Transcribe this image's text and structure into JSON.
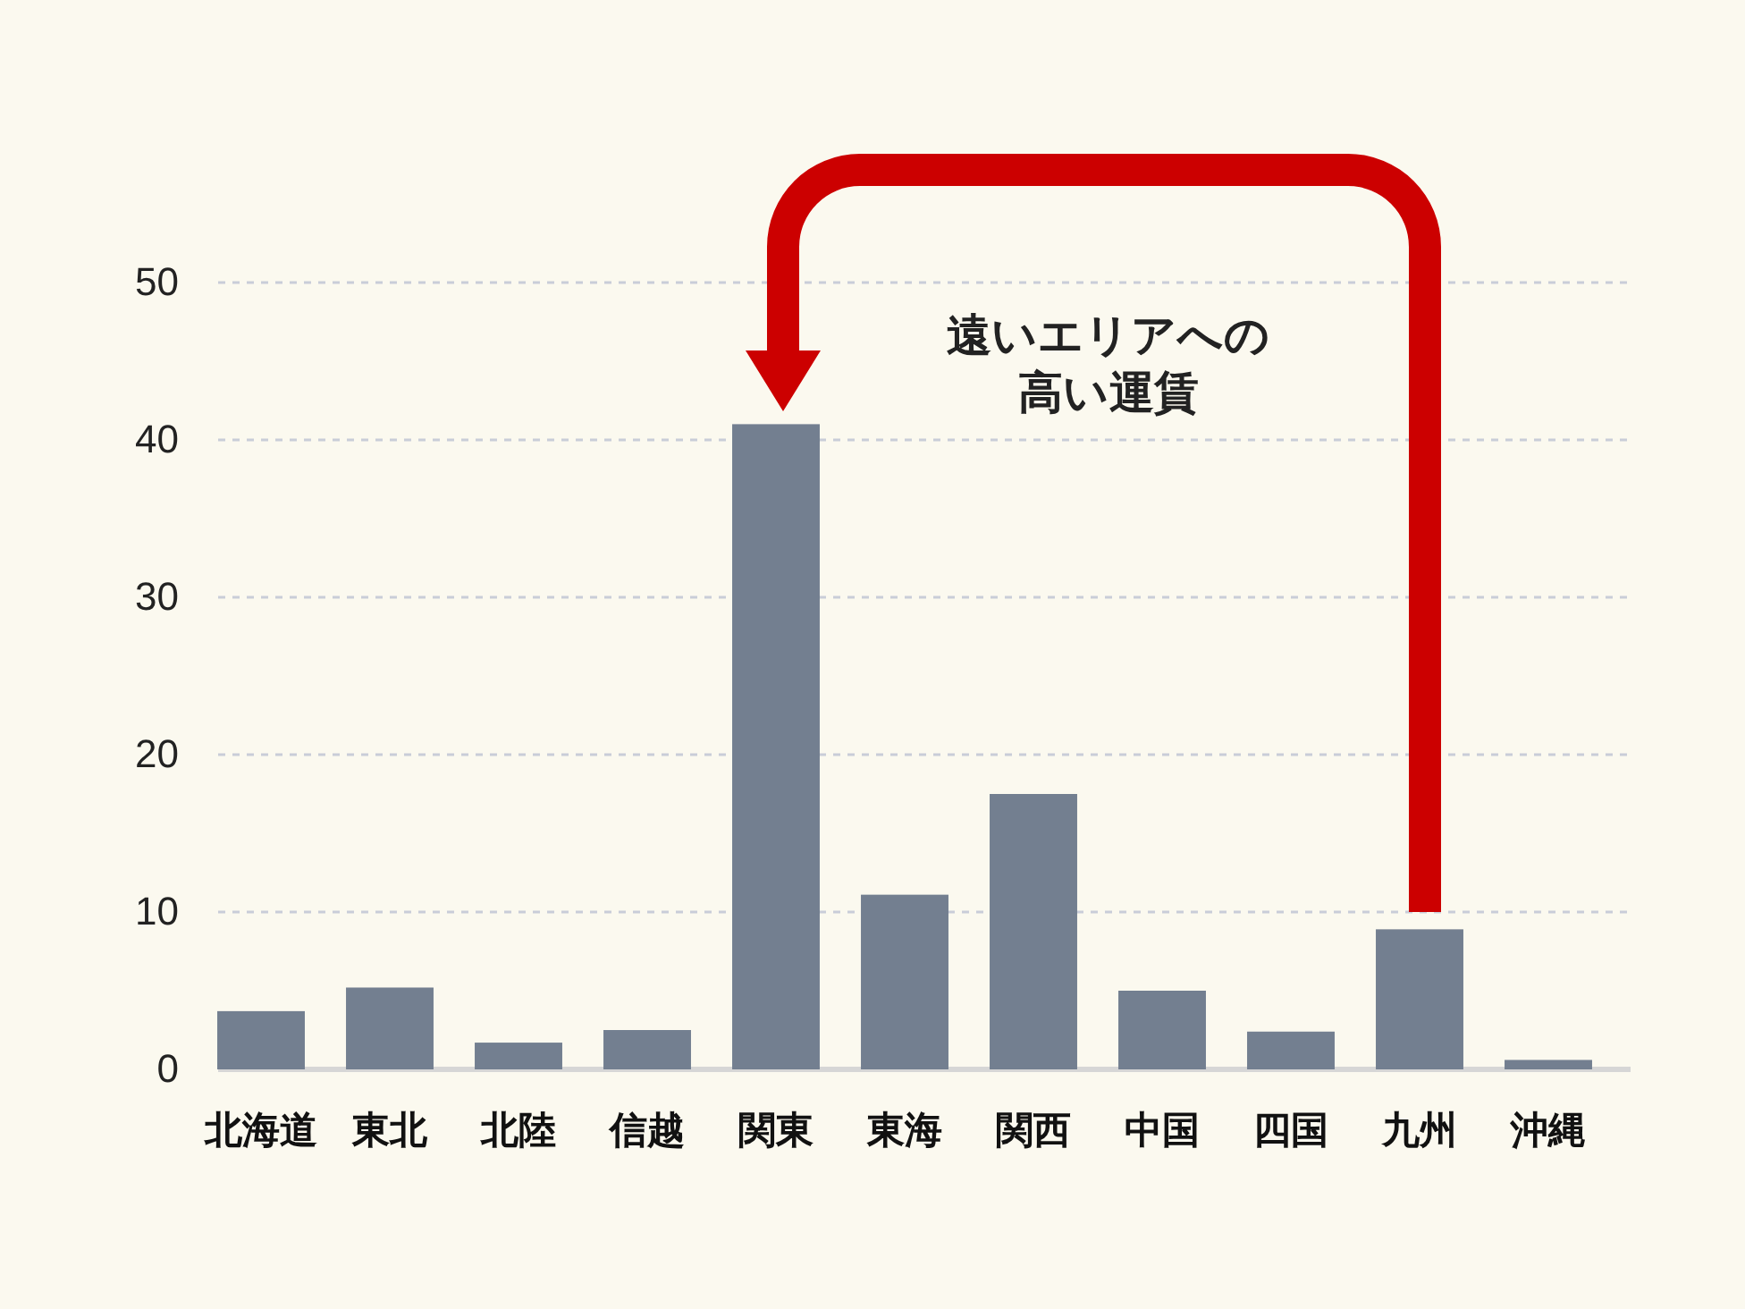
{
  "chart_data": {
    "type": "bar",
    "categories": [
      "北海道",
      "東北",
      "北陸",
      "信越",
      "関東",
      "東海",
      "関西",
      "中国",
      "四国",
      "九州",
      "沖縄"
    ],
    "values": [
      3.7,
      5.2,
      1.7,
      2.5,
      41,
      11.1,
      17.5,
      5.0,
      2.4,
      8.9,
      0.6
    ],
    "color": "#737f90",
    "ylim": [
      0,
      50
    ],
    "yticks": [
      0,
      10,
      20,
      30,
      40,
      50
    ],
    "grid": "y",
    "annotations": [
      "遠いエリアへの高い運賃"
    ]
  }
}
